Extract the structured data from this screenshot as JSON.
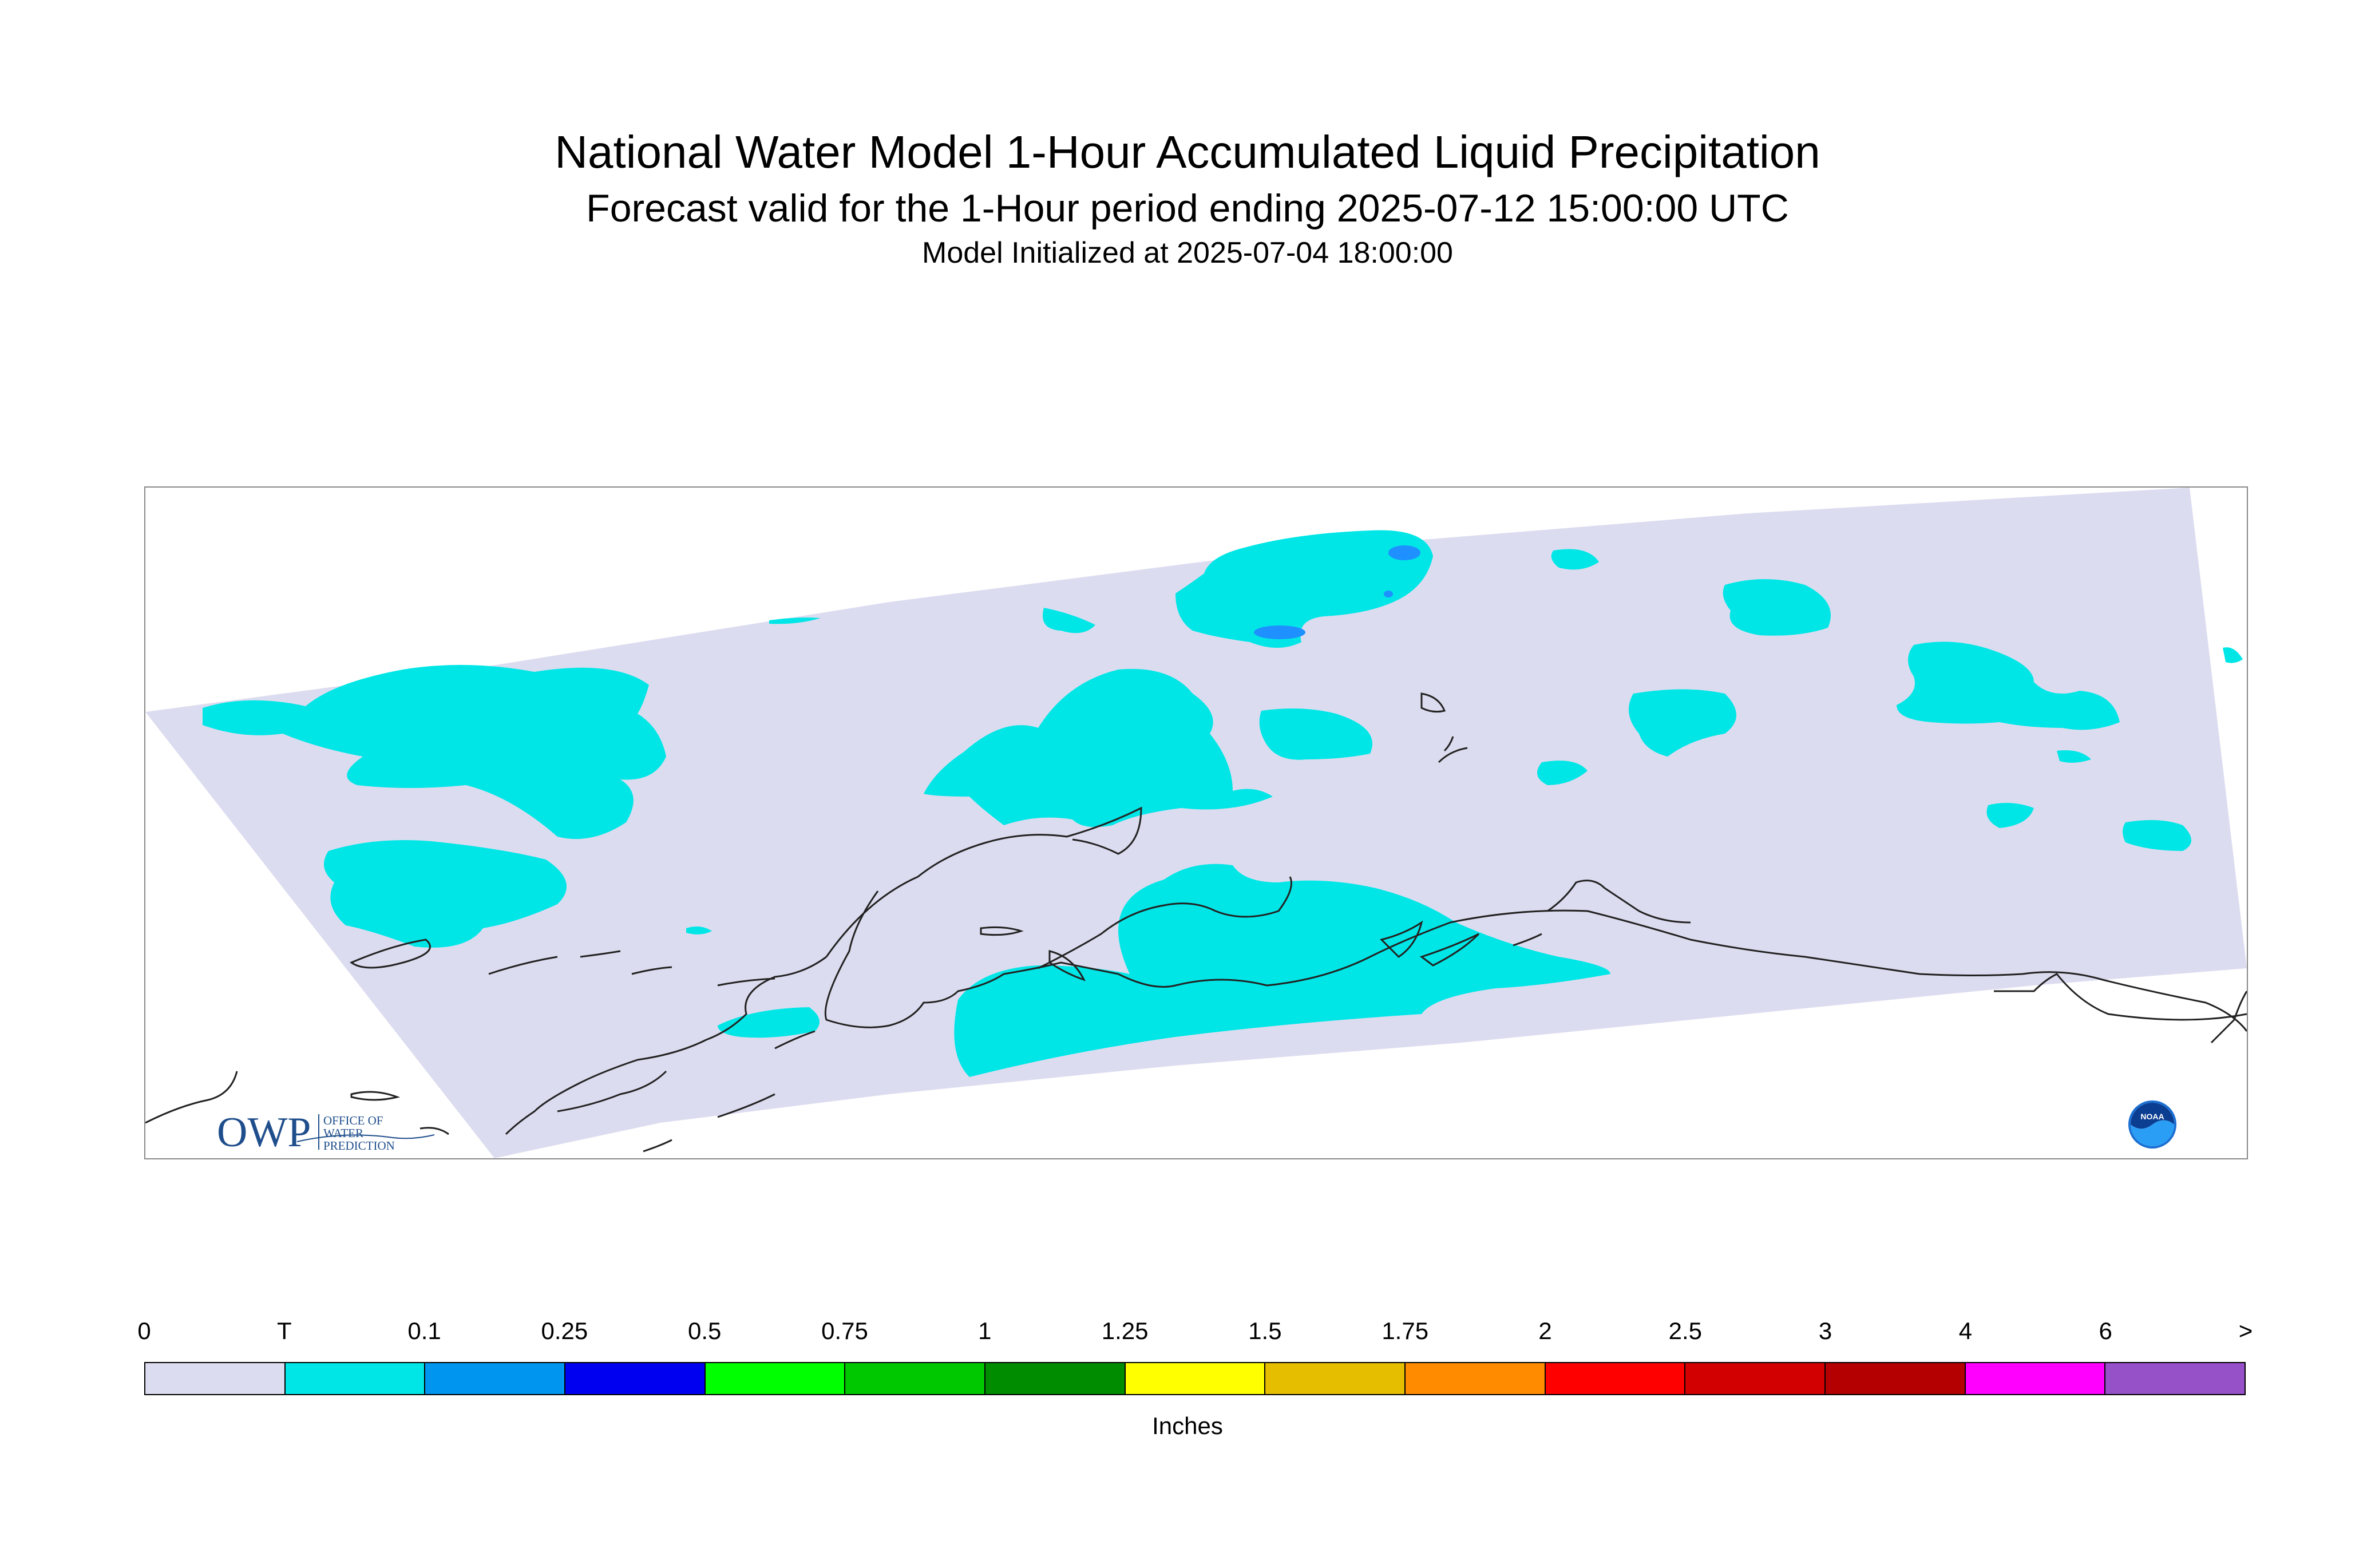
{
  "title": {
    "line1": "National Water Model 1-Hour Accumulated Liquid Precipitation",
    "line2": "Forecast valid for the 1-Hour period ending 2025-07-12 15:00:00 UTC",
    "line3": "Model Initialized at 2025-07-04 18:00:00"
  },
  "logos": {
    "owp_big": "OWP",
    "owp_small_1": "OFFICE OF",
    "owp_small_2": "WATER",
    "owp_small_3": "PREDICTION",
    "noaa": "NOAA"
  },
  "legend": {
    "units_label": "Inches",
    "tick_labels": [
      "0",
      "T",
      "0.1",
      "0.25",
      "0.5",
      "0.75",
      "1",
      "1.25",
      "1.5",
      "1.75",
      "2",
      "2.5",
      "3",
      "4",
      "6",
      ">"
    ],
    "colors": [
      "#dcdcf0",
      "#00e6e6",
      "#0096f0",
      "#0000f0",
      "#00ff00",
      "#00c800",
      "#008c00",
      "#ffff00",
      "#e6be00",
      "#ff8c00",
      "#ff0000",
      "#d20000",
      "#b40000",
      "#ff00ff",
      "#9650c8"
    ]
  },
  "colors": {
    "domain_fill": "#dcdcf0",
    "trace": "#00e6e6",
    "light": "#1e90ff",
    "coastline": "#222222"
  }
}
